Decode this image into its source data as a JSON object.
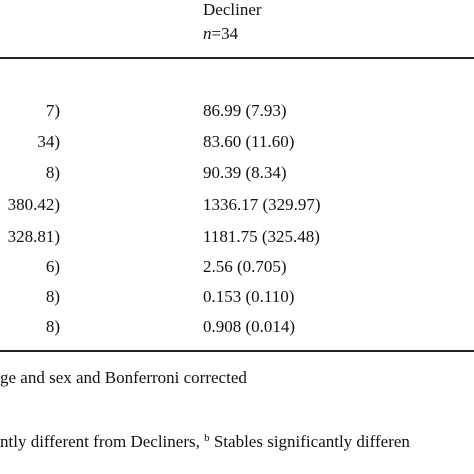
{
  "header": {
    "column": "Decliner",
    "n_symbol": "n",
    "n_value": "=34"
  },
  "table": {
    "rows": [
      [
        "7)",
        "86.99 (7.93)"
      ],
      [
        "34)",
        "83.60 (11.60)"
      ],
      [
        "8)",
        "90.39 (8.34)"
      ],
      [
        "380.42)",
        "1336.17 (329.97)"
      ],
      [
        "328.81)",
        "1181.75 (325.48)"
      ],
      [
        "6)",
        "2.56 (0.705)"
      ],
      [
        "8)",
        "0.153 (0.110)"
      ],
      [
        "8)",
        "0.908 (0.014)"
      ]
    ]
  },
  "footnotes": {
    "line1": "ge and sex and Bonferroni corrected",
    "line2_start": "ntly different from Decliners, ",
    "line2_sup": "b",
    "line2_end": " Stables significantly differen"
  }
}
